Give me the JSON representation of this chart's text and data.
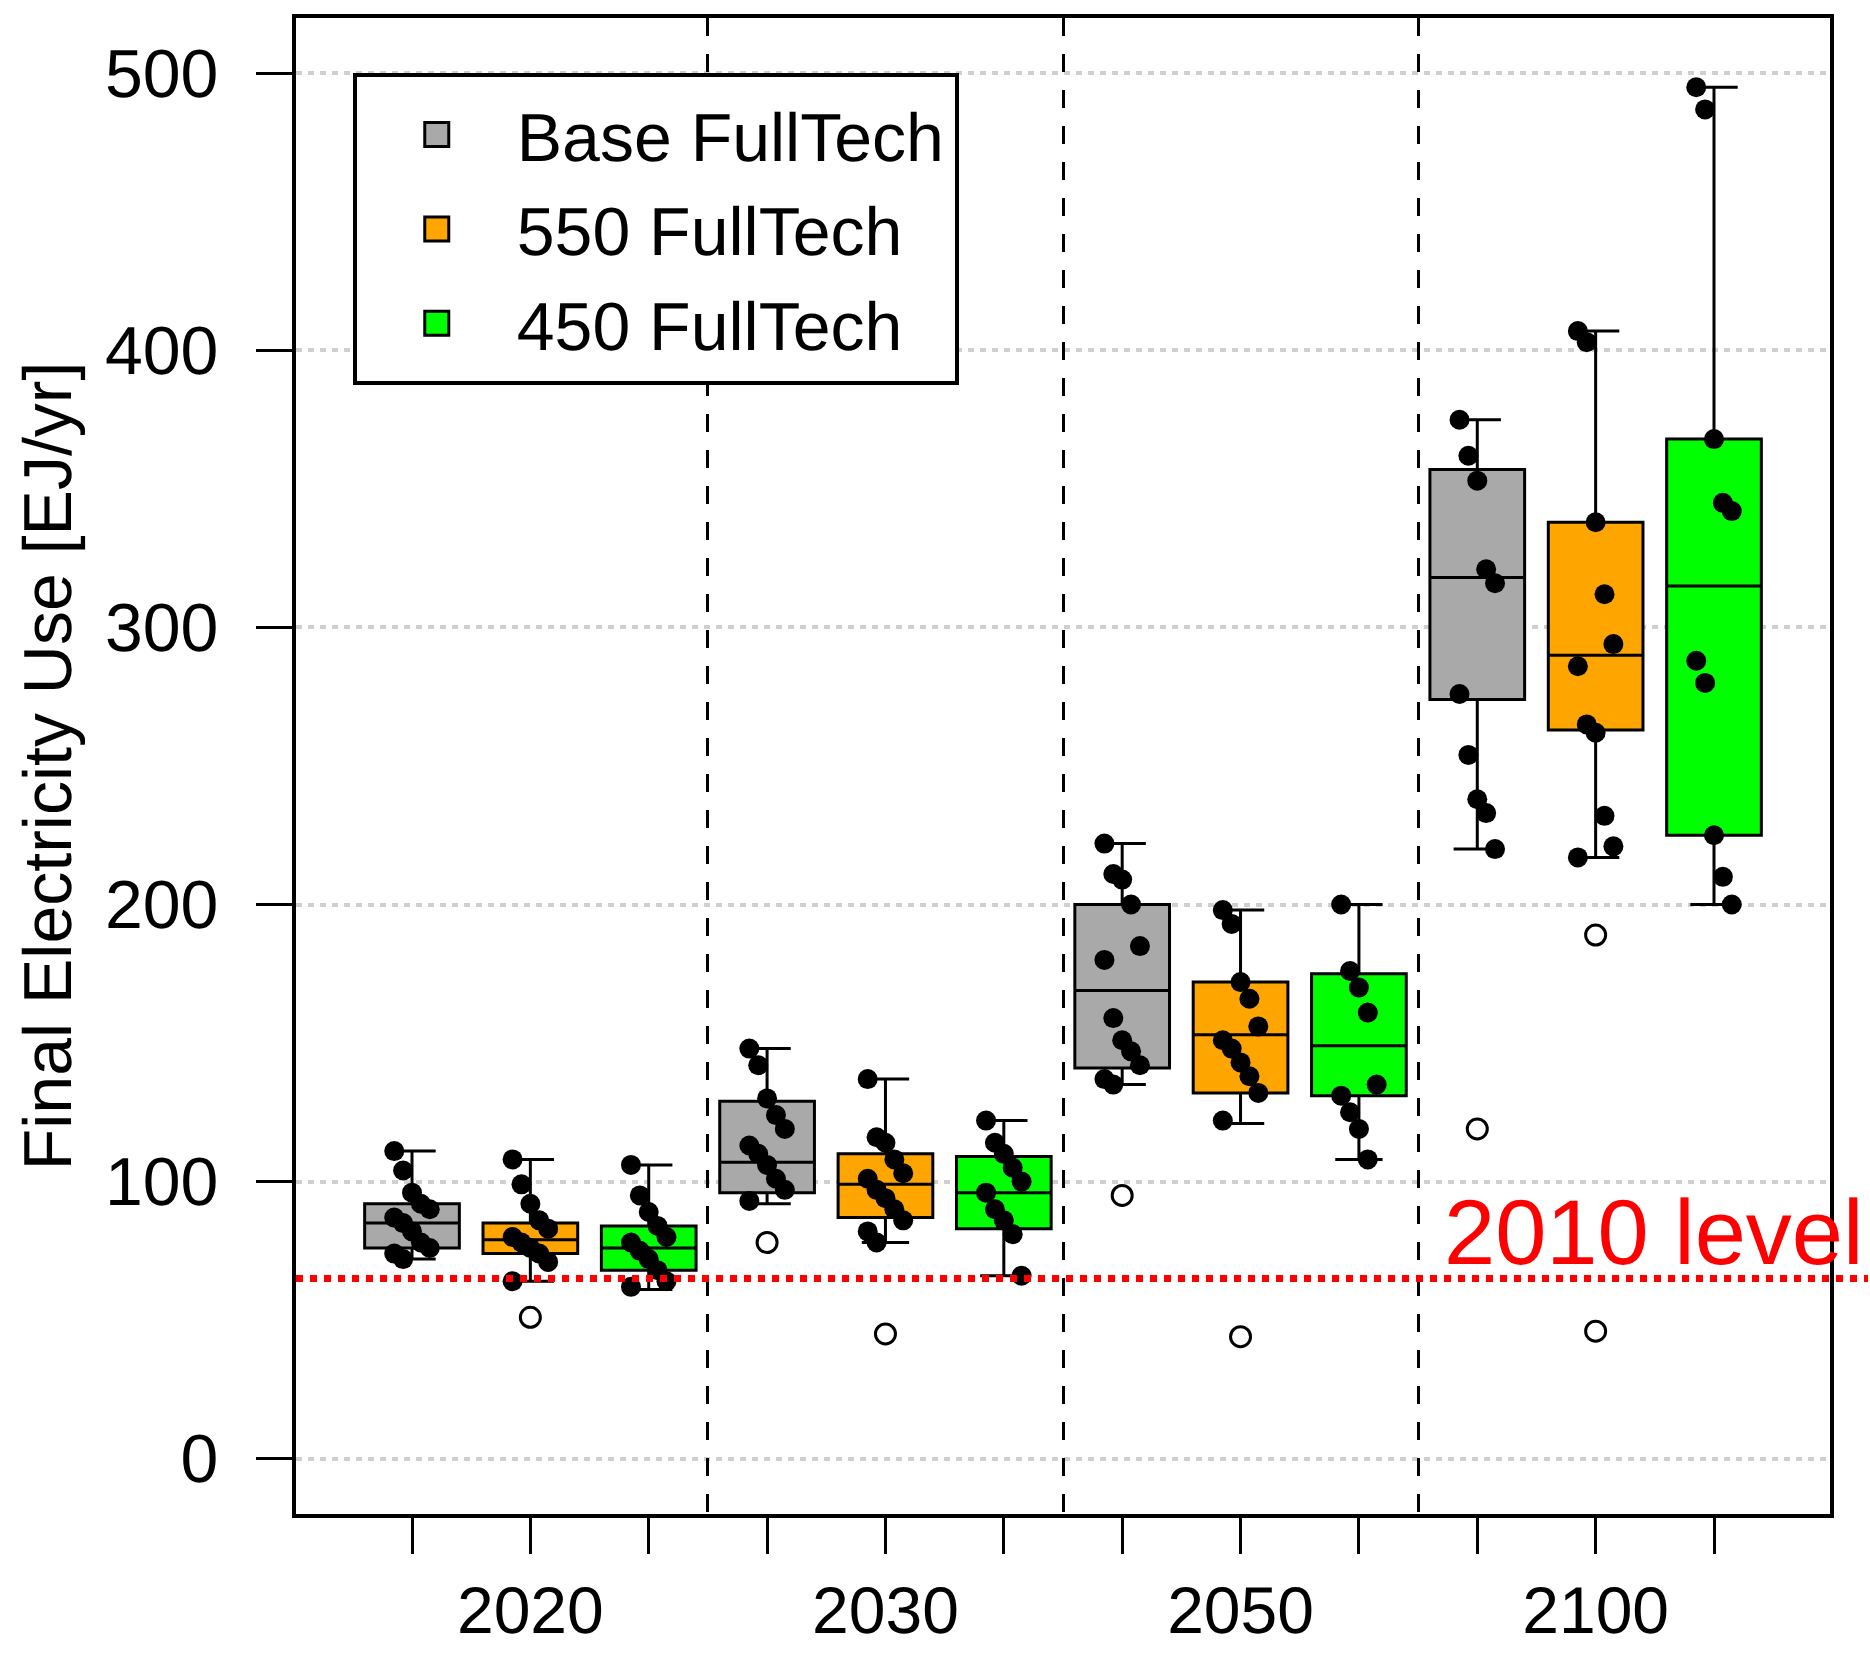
{
  "chart_data": {
    "type": "box",
    "categories": [
      "2020",
      "2030",
      "2050",
      "2100"
    ],
    "ylabel": "Final Electricity Use [EJ/yr]",
    "ylim": [
      -20,
      520
    ],
    "yticks": [
      0,
      100,
      200,
      300,
      400,
      500
    ],
    "grid": true,
    "legend": "top left",
    "marker": "circle",
    "series": [
      {
        "name": "Base FullTech",
        "color": "#a9a9a9",
        "boxes": [
          {
            "low": 72,
            "q1": 76,
            "median": 85,
            "q3": 92,
            "high": 111
          },
          {
            "low": 92,
            "q1": 96,
            "median": 107,
            "q3": 129,
            "high": 148,
            "outliers": [
              78
            ]
          },
          {
            "low": 135,
            "q1": 141,
            "median": 169,
            "q3": 200,
            "high": 222,
            "outliers": [
              95
            ]
          },
          {
            "low": 220,
            "q1": 274,
            "median": 318,
            "q3": 357,
            "high": 375,
            "outliers": [
              119
            ]
          }
        ]
      },
      {
        "type": "scatter",
        "color": "#000000",
        "values": [
          111,
          148,
          222,
          375
        ]
      },
      {
        "type": "scatter",
        "color": "#000000",
        "values": [
          104,
          142,
          211,
          362
        ]
      },
      {
        "type": "scatter",
        "color": "#000000",
        "values": [
          96,
          130,
          209,
          353
        ]
      },
      {
        "type": "scatter",
        "color": "#000000",
        "values": [
          92,
          124,
          200,
          321
        ]
      },
      {
        "type": "scatter",
        "color": "#000000",
        "values": [
          90,
          119,
          185,
          316
        ]
      },
      {
        "type": "scatter",
        "color": "#000000",
        "values": [
          87,
          113,
          180,
          276
        ]
      },
      {
        "type": "scatter",
        "color": "#000000",
        "values": [
          85,
          110,
          159,
          254
        ]
      },
      {
        "type": "scatter",
        "color": "#000000",
        "values": [
          82,
          106,
          151,
          238
        ]
      },
      {
        "type": "scatter",
        "color": "#000000",
        "values": [
          78,
          101,
          147,
          233
        ]
      },
      {
        "type": "scatter",
        "color": "#000000",
        "values": [
          76,
          97,
          142,
          220
        ]
      },
      {
        "type": "scatter",
        "color": "#000000",
        "values": [
          74,
          93,
          137,
          null
        ]
      },
      {
        "type": "scatter",
        "color": "#000000",
        "values": [
          72,
          null,
          135,
          null
        ]
      },
      {
        "name": "550 FullTech",
        "color": "#ffa500",
        "boxes": [
          {
            "low": 64,
            "q1": 74,
            "median": 79,
            "q3": 85,
            "high": 108,
            "outliers": [
              51
            ]
          },
          {
            "low": 78,
            "q1": 87,
            "median": 99,
            "q3": 110,
            "high": 137,
            "outliers": [
              45
            ]
          },
          {
            "low": 121,
            "q1": 132,
            "median": 153,
            "q3": 172,
            "high": 198,
            "outliers": [
              44
            ]
          },
          {
            "low": 217,
            "q1": 263,
            "median": 290,
            "q3": 338,
            "high": 407,
            "outliers": [
              189,
              46
            ]
          }
        ]
      },
      {
        "type": "scatter",
        "color": "#000000",
        "values": [
          108,
          137,
          198,
          407
        ]
      },
      {
        "type": "scatter",
        "color": "#000000",
        "values": [
          99,
          116,
          193,
          403
        ]
      },
      {
        "type": "scatter",
        "color": "#000000",
        "values": [
          92,
          114,
          172,
          338
        ]
      },
      {
        "type": "scatter",
        "color": "#000000",
        "values": [
          86,
          108,
          166,
          312
        ]
      },
      {
        "type": "scatter",
        "color": "#000000",
        "values": [
          83,
          103,
          156,
          294
        ]
      },
      {
        "type": "scatter",
        "color": "#000000",
        "values": [
          80,
          101,
          151,
          286
        ]
      },
      {
        "type": "scatter",
        "color": "#000000",
        "values": [
          78,
          97,
          148,
          265
        ]
      },
      {
        "type": "scatter",
        "color": "#000000",
        "values": [
          76,
          94,
          143,
          262
        ]
      },
      {
        "type": "scatter",
        "color": "#000000",
        "values": [
          74,
          90,
          138,
          232
        ]
      },
      {
        "type": "scatter",
        "color": "#000000",
        "values": [
          71,
          86,
          132,
          221
        ]
      },
      {
        "type": "scatter",
        "color": "#000000",
        "values": [
          64,
          82,
          122,
          217
        ]
      },
      {
        "type": "scatter",
        "color": "#000000",
        "values": [
          null,
          78,
          null,
          null
        ]
      },
      {
        "name": "450 FullTech",
        "color": "#00ff00",
        "boxes": [
          {
            "low": 61,
            "q1": 68,
            "median": 76,
            "q3": 84,
            "high": 106
          },
          {
            "low": 66,
            "q1": 83,
            "median": 96,
            "q3": 109,
            "high": 122
          },
          {
            "low": 108,
            "q1": 131,
            "median": 149,
            "q3": 175,
            "high": 200
          },
          {
            "low": 200,
            "q1": 225,
            "median": 315,
            "q3": 368,
            "high": 495
          }
        ]
      },
      {
        "type": "scatter",
        "color": "#000000",
        "values": [
          106,
          122,
          200,
          495
        ]
      },
      {
        "type": "scatter",
        "color": "#000000",
        "values": [
          95,
          114,
          176,
          487
        ]
      },
      {
        "type": "scatter",
        "color": "#000000",
        "values": [
          89,
          110,
          170,
          368
        ]
      },
      {
        "type": "scatter",
        "color": "#000000",
        "values": [
          84,
          105,
          161,
          345
        ]
      },
      {
        "type": "scatter",
        "color": "#000000",
        "values": [
          80,
          100,
          135,
          342
        ]
      },
      {
        "type": "scatter",
        "color": "#000000",
        "values": [
          78,
          96,
          131,
          288
        ]
      },
      {
        "type": "scatter",
        "color": "#000000",
        "values": [
          75,
          90,
          125,
          280
        ]
      },
      {
        "type": "scatter",
        "color": "#000000",
        "values": [
          72,
          86,
          119,
          225
        ]
      },
      {
        "type": "scatter",
        "color": "#000000",
        "values": [
          68,
          81,
          108,
          210
        ]
      },
      {
        "type": "scatter",
        "color": "#000000",
        "values": [
          64,
          66,
          null,
          200
        ]
      },
      {
        "type": "scatter",
        "color": "#000000",
        "values": [
          62,
          null,
          null,
          null
        ]
      }
    ],
    "ref_lines": [
      {
        "axis": "y",
        "value": 65,
        "label": "2010 level",
        "color": "#ff0000",
        "line_style": "dotted"
      }
    ]
  }
}
